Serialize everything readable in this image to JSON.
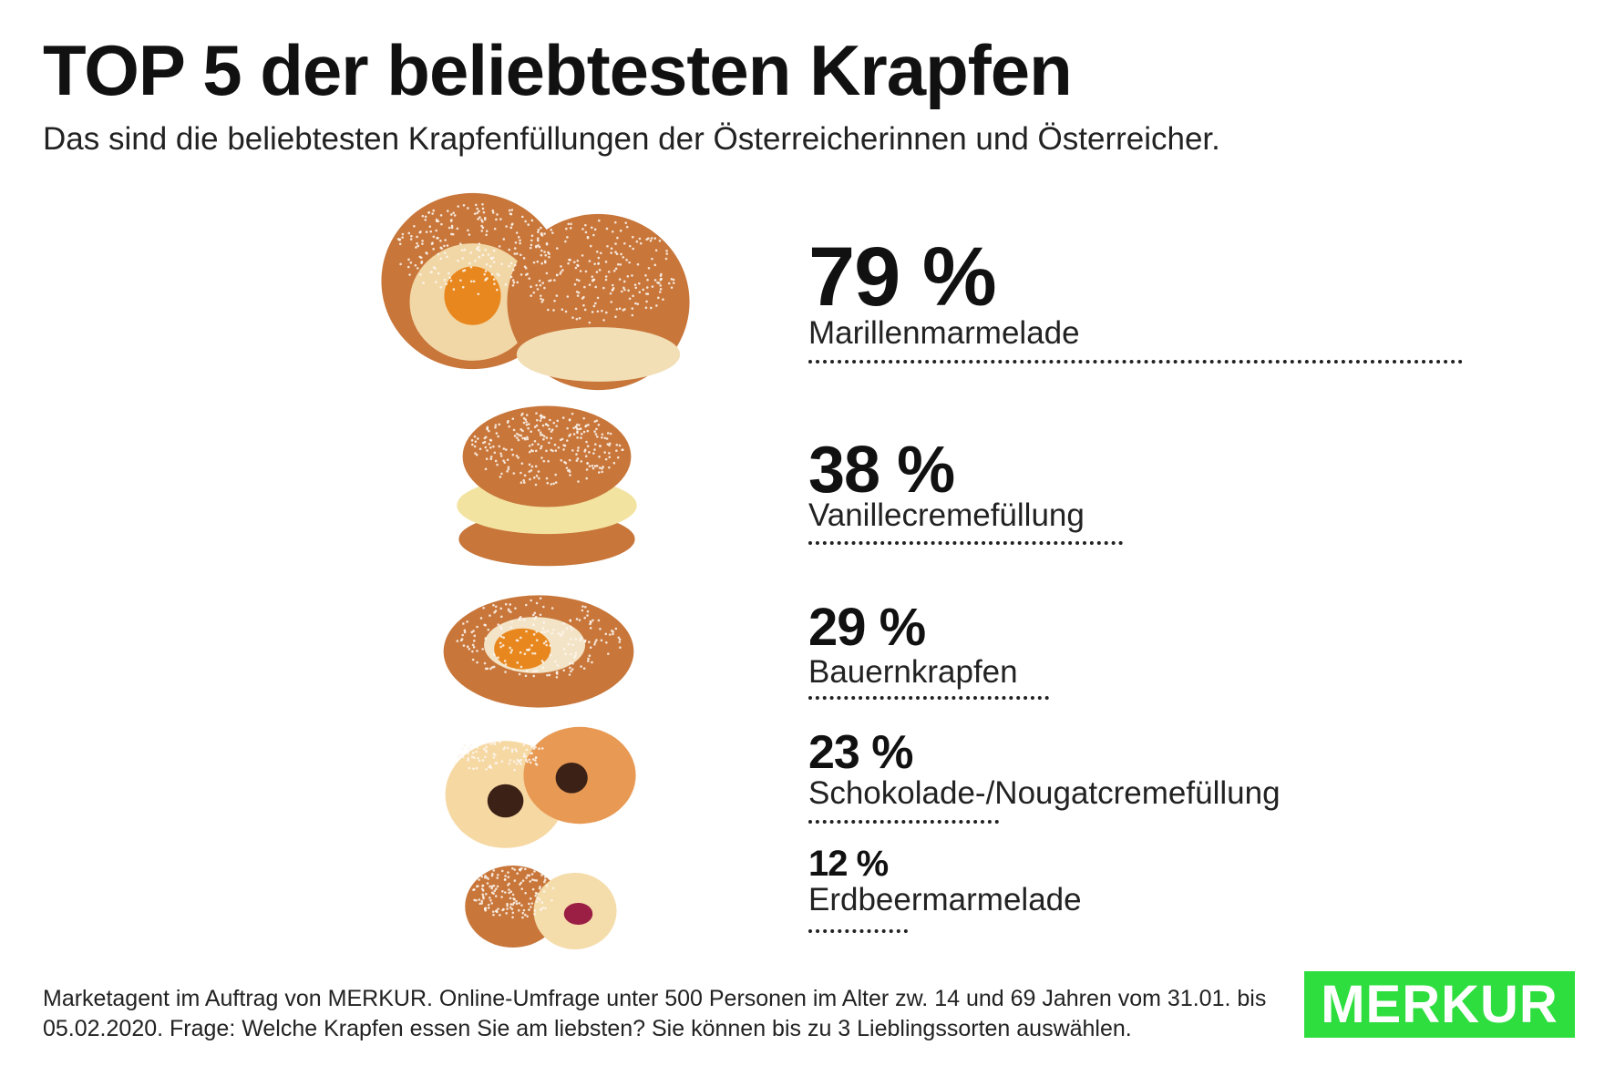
{
  "header": {
    "title": "TOP 5 der beliebtesten Krapfen",
    "subtitle": "Das sind die beliebtesten Krapfenfüllungen der Österreicherinnen und Österreicher."
  },
  "chart_data": {
    "type": "bar",
    "title": "TOP 5 der beliebtesten Krapfen",
    "subtitle": "Das sind die beliebtesten Krapfenfüllungen der Österreicherinnen und Österreicher.",
    "categories": [
      "Marillenmarmelade",
      "Vanillecremefüllung",
      "Bauernkrapfen",
      "Schokolade-/Nougatcremefüllung",
      "Erdbeermarmelade"
    ],
    "values": [
      79,
      38,
      29,
      23,
      12
    ],
    "value_labels": [
      "79 %",
      "38 %",
      "29 %",
      "23 %",
      "12 %"
    ],
    "unit": "%",
    "ylim": [
      0,
      100
    ]
  },
  "footer": {
    "source": "Marketagent im Auftrag von MERKUR. Online-Umfrage unter 500 Personen im Alter zw. 14 und 69 Jahren vom 31.01. bis 05.02.2020. Frage: Welche Krapfen essen Sie am liebsten? Sie können bis zu 3 Lieblingssorten auswählen.",
    "logo": "MERKUR"
  },
  "colors": {
    "brand": "#2ede3f",
    "text": "#111111",
    "dough": "#c8763a",
    "sugar": "#f4efe8",
    "apricot": "#e8871e",
    "vanilla": "#f3e3a0",
    "chocolate": "#3b2116",
    "strawberry": "#9b1f45"
  }
}
